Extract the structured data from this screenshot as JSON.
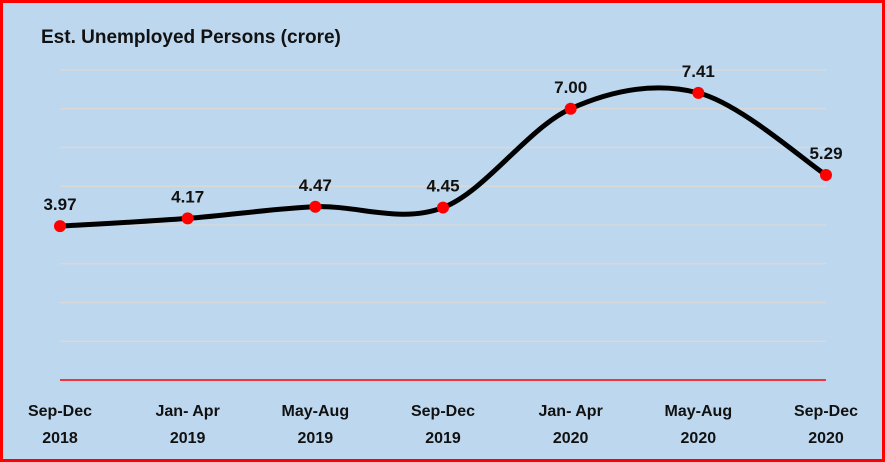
{
  "chart_data": {
    "type": "line",
    "title": "Est. Unemployed Persons (crore)",
    "categories": [
      [
        "Sep-Dec",
        "2018"
      ],
      [
        "Jan- Apr",
        "2019"
      ],
      [
        "May-Aug",
        "2019"
      ],
      [
        "Sep-Dec",
        "2019"
      ],
      [
        "Jan- Apr",
        "2020"
      ],
      [
        "May-Aug",
        "2020"
      ],
      [
        "Sep-Dec",
        "2020"
      ]
    ],
    "values": [
      3.97,
      4.17,
      4.47,
      4.45,
      7.0,
      7.41,
      5.29
    ],
    "data_labels": [
      "3.97",
      "4.17",
      "4.47",
      "4.45",
      "7.00",
      "7.41",
      "5.29"
    ],
    "ylim": [
      0,
      8
    ],
    "grid": true,
    "smooth": true,
    "colors": {
      "line": "#000000",
      "marker": "#ff0000",
      "background": "#bdd7ee",
      "border": "#ff0000",
      "axis": "#ff0000",
      "grid": "#d9d9d9"
    }
  }
}
